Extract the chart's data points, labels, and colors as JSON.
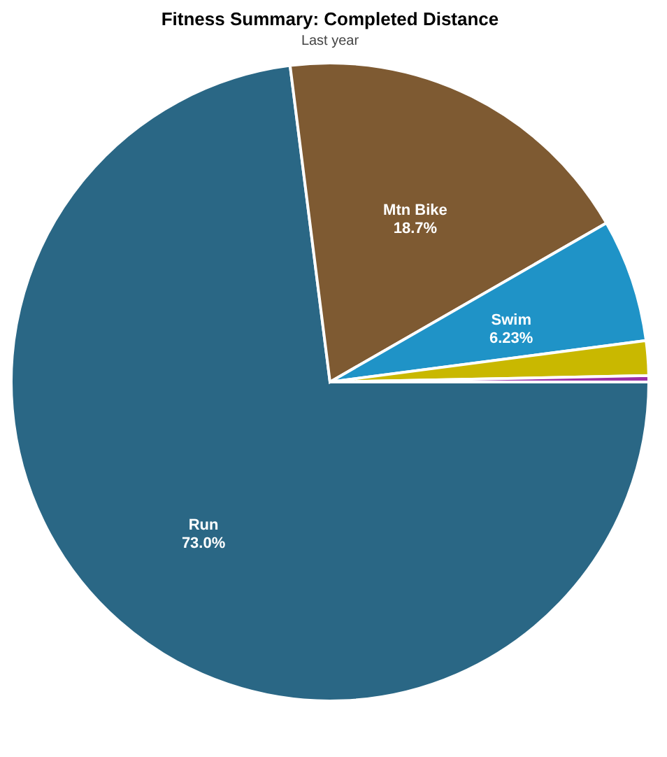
{
  "chart_data": {
    "type": "pie",
    "title": "Fitness Summary: Completed Distance",
    "subtitle": "Last year",
    "categories": [
      "Run",
      "Mtn Bike",
      "Swim",
      null,
      null
    ],
    "values": [
      73.0,
      18.7,
      6.23,
      1.75,
      0.32
    ],
    "value_labels": [
      "73.0%",
      "18.7%",
      "6.23%",
      null,
      null
    ],
    "colors": [
      "#2a6785",
      "#7e5a32",
      "#1f93c7",
      "#c9b800",
      "#9b2fa8"
    ],
    "legend": false
  }
}
